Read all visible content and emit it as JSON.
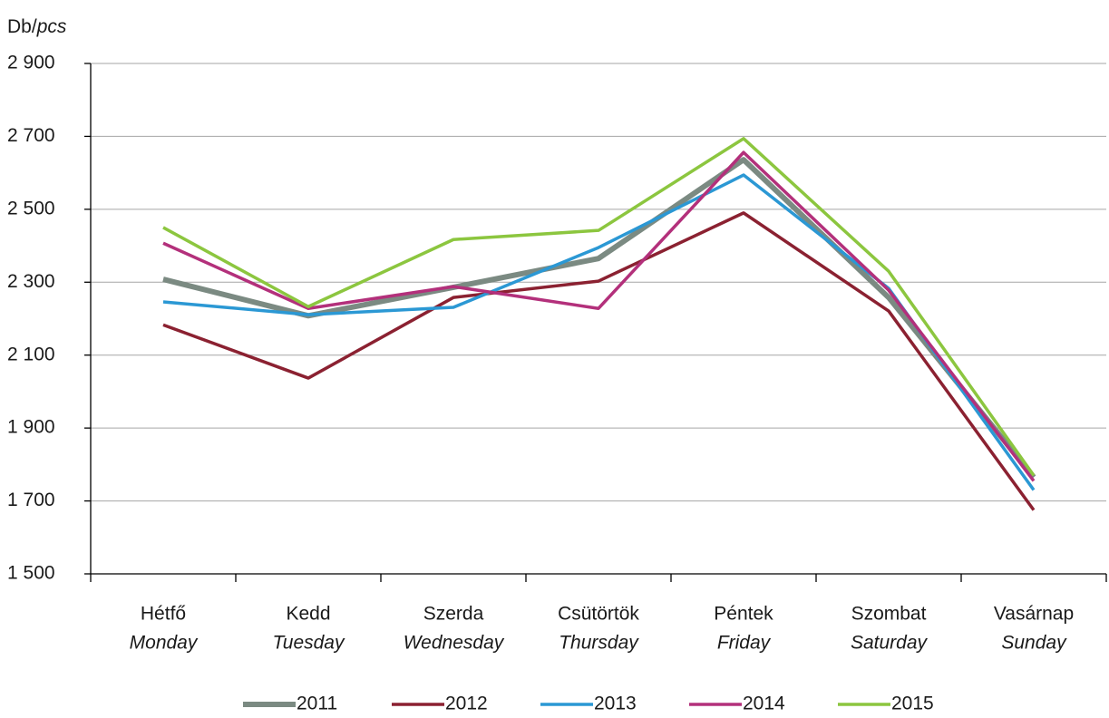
{
  "chart_data": {
    "type": "line",
    "y_label": [
      "Db/",
      "pcs"
    ],
    "categories": [
      "Hétfő",
      "Kedd",
      "Szerda",
      "Csütörtök",
      "Péntek",
      "Szombat",
      "Vasárnap"
    ],
    "categories_en": [
      "Monday",
      "Tuesday",
      "Wednesday",
      "Thursday",
      "Friday",
      "Saturday",
      "Sunday"
    ],
    "ylim": [
      1500,
      2900
    ],
    "yticks": [
      {
        "value": 1500,
        "label": "1 500"
      },
      {
        "value": 1700,
        "label": "1 700"
      },
      {
        "value": 1900,
        "label": "1 900"
      },
      {
        "value": 2100,
        "label": "2 100"
      },
      {
        "value": 2300,
        "label": "2 300"
      },
      {
        "value": 2500,
        "label": "2 500"
      },
      {
        "value": 2700,
        "label": "2 700"
      },
      {
        "value": 2900,
        "label": "2 900"
      }
    ],
    "grid": true,
    "legend": "bottom",
    "series": [
      {
        "name": "2011",
        "color": "#7b8a82",
        "line_width": 6,
        "values": [
          2308,
          2208,
          2286,
          2365,
          2636,
          2258,
          1765
        ]
      },
      {
        "name": "2012",
        "color": "#8b2131",
        "line_width": 3.5,
        "values": [
          2183,
          2037,
          2258,
          2303,
          2490,
          2221,
          1675
        ]
      },
      {
        "name": "2013",
        "color": "#2b98d4",
        "line_width": 3.5,
        "values": [
          2246,
          2211,
          2231,
          2395,
          2594,
          2283,
          1730
        ]
      },
      {
        "name": "2014",
        "color": "#b3307b",
        "line_width": 3.5,
        "values": [
          2407,
          2228,
          2288,
          2228,
          2656,
          2278,
          1755
        ]
      },
      {
        "name": "2015",
        "color": "#8cc63f",
        "line_width": 3.5,
        "values": [
          2450,
          2233,
          2417,
          2442,
          2694,
          2330,
          1770
        ]
      }
    ]
  }
}
